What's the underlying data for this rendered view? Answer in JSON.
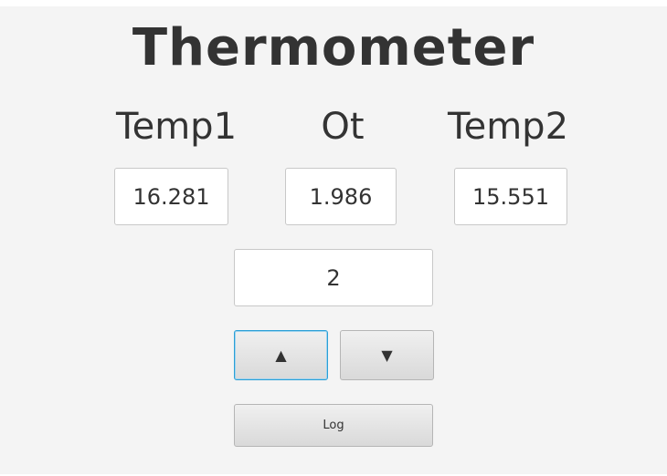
{
  "app": {
    "title": "Thermometer"
  },
  "readings": {
    "temp1_label": "Temp1",
    "ot_label": "Ot",
    "temp2_label": "Temp2",
    "temp1_value": "16.281",
    "ot_value": "1.986",
    "temp2_value": "15.551"
  },
  "control": {
    "step_value": "2",
    "up_label": "▲",
    "down_label": "▼",
    "log_label": "Log"
  }
}
